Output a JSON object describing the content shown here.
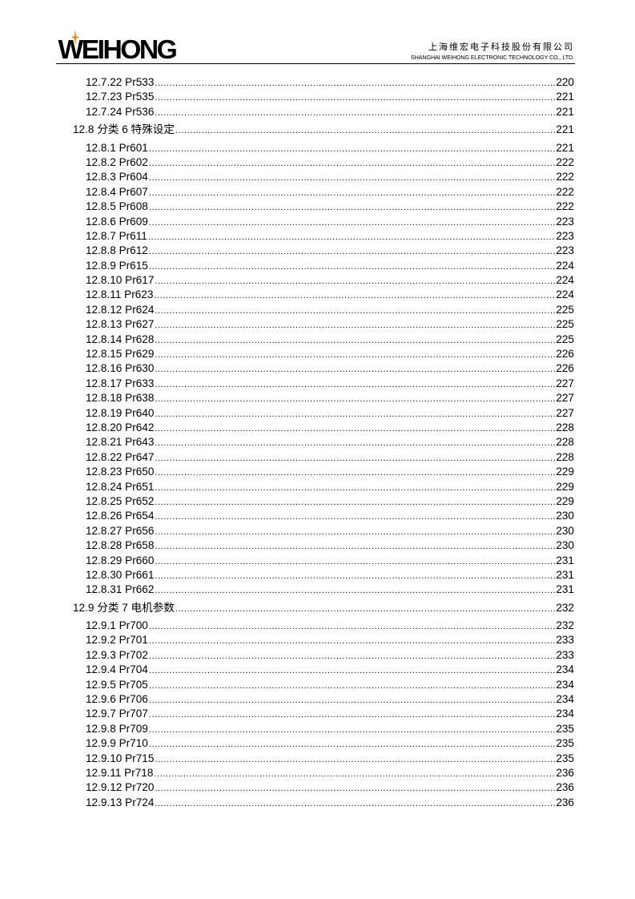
{
  "header": {
    "logo": "WEIHONG",
    "company_cn": "上海维宏电子科技股份有限公司",
    "company_en": "SHANGHAI WEIHONG ELECTRONIC TECHNOLOGY CO., LTD.",
    "accent": "#e8892b"
  },
  "toc": [
    {
      "t": "12.7.22 Pr533",
      "p": "220",
      "h": false
    },
    {
      "t": "12.7.23 Pr535",
      "p": "221",
      "h": false
    },
    {
      "t": "12.7.24 Pr536",
      "p": "221",
      "h": false
    },
    {
      "t": "12.8 分类 6 特殊设定",
      "p": "221",
      "h": true
    },
    {
      "t": "12.8.1 Pr601",
      "p": "221",
      "h": false
    },
    {
      "t": "12.8.2 Pr602",
      "p": "222",
      "h": false
    },
    {
      "t": "12.8.3 Pr604",
      "p": "222",
      "h": false
    },
    {
      "t": "12.8.4 Pr607",
      "p": "222",
      "h": false
    },
    {
      "t": "12.8.5 Pr608",
      "p": "222",
      "h": false
    },
    {
      "t": "12.8.6 Pr609",
      "p": "223",
      "h": false
    },
    {
      "t": "12.8.7 Pr611",
      "p": "223",
      "h": false
    },
    {
      "t": "12.8.8 Pr612",
      "p": "223",
      "h": false
    },
    {
      "t": "12.8.9 Pr615",
      "p": "224",
      "h": false
    },
    {
      "t": "12.8.10 Pr617",
      "p": "224",
      "h": false
    },
    {
      "t": "12.8.11 Pr623",
      "p": "224",
      "h": false
    },
    {
      "t": "12.8.12 Pr624",
      "p": "225",
      "h": false
    },
    {
      "t": "12.8.13 Pr627",
      "p": "225",
      "h": false
    },
    {
      "t": "12.8.14 Pr628",
      "p": "225",
      "h": false
    },
    {
      "t": "12.8.15 Pr629",
      "p": "226",
      "h": false
    },
    {
      "t": "12.8.16 Pr630",
      "p": "226",
      "h": false
    },
    {
      "t": "12.8.17 Pr633",
      "p": "227",
      "h": false
    },
    {
      "t": "12.8.18 Pr638",
      "p": "227",
      "h": false
    },
    {
      "t": "12.8.19 Pr640",
      "p": "227",
      "h": false
    },
    {
      "t": "12.8.20 Pr642",
      "p": "228",
      "h": false
    },
    {
      "t": "12.8.21 Pr643",
      "p": "228",
      "h": false
    },
    {
      "t": "12.8.22 Pr647",
      "p": "228",
      "h": false
    },
    {
      "t": "12.8.23 Pr650",
      "p": "229",
      "h": false
    },
    {
      "t": "12.8.24 Pr651",
      "p": "229",
      "h": false
    },
    {
      "t": "12.8.25 Pr652",
      "p": "229",
      "h": false
    },
    {
      "t": "12.8.26 Pr654",
      "p": "230",
      "h": false
    },
    {
      "t": "12.8.27 Pr656",
      "p": "230",
      "h": false
    },
    {
      "t": "12.8.28 Pr658",
      "p": "230",
      "h": false
    },
    {
      "t": "12.8.29 Pr660",
      "p": "231",
      "h": false
    },
    {
      "t": "12.8.30 Pr661",
      "p": "231",
      "h": false
    },
    {
      "t": "12.8.31 Pr662",
      "p": "231",
      "h": false
    },
    {
      "t": "12.9 分类 7 电机参数",
      "p": "232",
      "h": true
    },
    {
      "t": "12.9.1 Pr700",
      "p": "232",
      "h": false
    },
    {
      "t": "12.9.2 Pr701",
      "p": "233",
      "h": false
    },
    {
      "t": "12.9.3 Pr702",
      "p": "233",
      "h": false
    },
    {
      "t": "12.9.4 Pr704",
      "p": "234",
      "h": false
    },
    {
      "t": "12.9.5 Pr705",
      "p": "234",
      "h": false
    },
    {
      "t": "12.9.6 Pr706",
      "p": "234",
      "h": false
    },
    {
      "t": "12.9.7 Pr707",
      "p": "234",
      "h": false
    },
    {
      "t": "12.9.8 Pr709",
      "p": "235",
      "h": false
    },
    {
      "t": "12.9.9 Pr710",
      "p": "235",
      "h": false
    },
    {
      "t": "12.9.10 Pr715",
      "p": "235",
      "h": false
    },
    {
      "t": "12.9.11 Pr718",
      "p": "236",
      "h": false
    },
    {
      "t": "12.9.12 Pr720",
      "p": "236",
      "h": false
    },
    {
      "t": "12.9.13 Pr724",
      "p": "236",
      "h": false
    }
  ]
}
